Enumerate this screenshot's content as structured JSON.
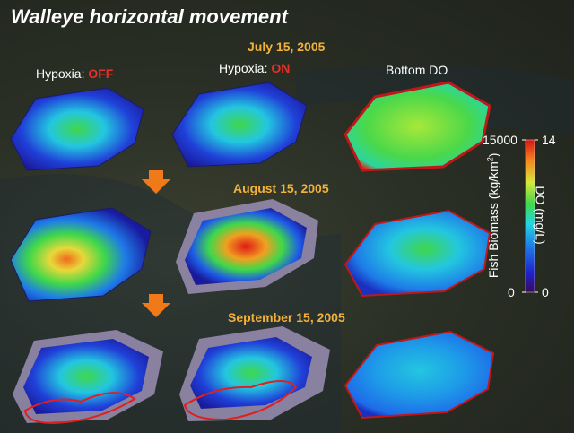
{
  "title": "Walleye horizontal movement",
  "columns": {
    "off": {
      "prefix": "Hypoxia: ",
      "state": "OFF"
    },
    "on": {
      "prefix": "Hypoxia: ",
      "state": "ON"
    },
    "do": {
      "label": "Bottom DO"
    }
  },
  "dates": [
    "July 15, 2005",
    "August 15, 2005",
    "September 15, 2005"
  ],
  "legend": {
    "biomass_label": "Fish Biomass (kg/km",
    "biomass_sup": "2",
    "biomass_close": ")",
    "do_label": "DO (mg/L)",
    "biomass_max": "15000",
    "biomass_min": "0",
    "do_max": "14",
    "do_min": "0"
  },
  "colors": {
    "title_text": "#ffffff",
    "date_text": "#f3b23a",
    "hypoxia_state": "#e8302a",
    "arrow": "#f07a1a"
  }
}
